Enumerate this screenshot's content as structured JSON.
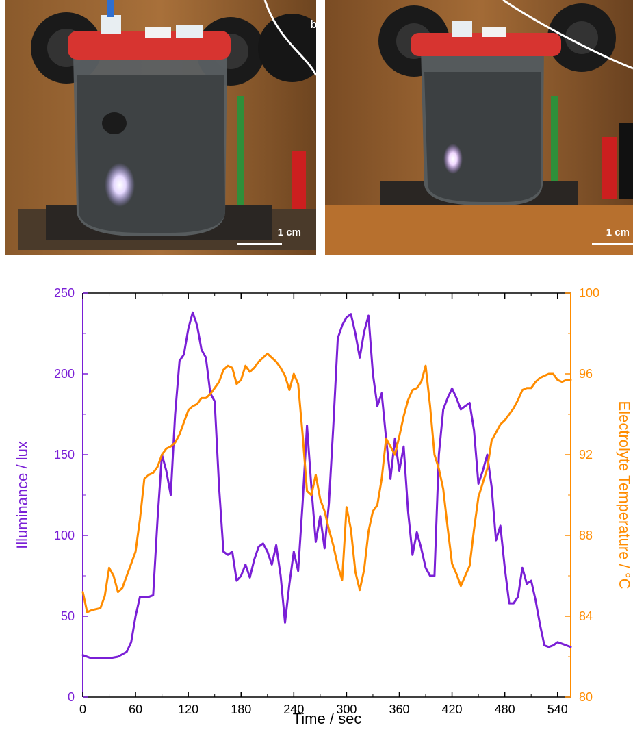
{
  "photos": {
    "panel_letter": "b",
    "left": {
      "scale_label": "1 cm"
    },
    "right": {
      "scale_label": "1 cm"
    }
  },
  "colors": {
    "illuminance": "#7a1fd6",
    "temperature": "#ff8c00",
    "axis": "#000000"
  },
  "chart_data": {
    "type": "line",
    "title": "",
    "xlabel": "Time / sec",
    "ylabel_left": "Illuminance / lux",
    "ylabel_right": "Electrolyte Temperature / °C",
    "xlim": [
      0,
      555
    ],
    "ylim_left": [
      0,
      250
    ],
    "ylim_right": [
      80,
      100
    ],
    "x_ticks": [
      0,
      60,
      120,
      180,
      240,
      300,
      360,
      420,
      480,
      540
    ],
    "y_ticks_left": [
      0,
      50,
      100,
      150,
      200,
      250
    ],
    "y_ticks_right": [
      80,
      84,
      88,
      92,
      96,
      100
    ],
    "grid": false,
    "series": [
      {
        "name": "Illuminance",
        "axis": "left",
        "color": "#7a1fd6",
        "x": [
          0,
          10,
          20,
          30,
          40,
          50,
          55,
          60,
          65,
          70,
          75,
          80,
          85,
          90,
          95,
          100,
          105,
          110,
          115,
          120,
          125,
          130,
          135,
          140,
          145,
          150,
          155,
          160,
          165,
          170,
          175,
          180,
          185,
          190,
          195,
          200,
          205,
          210,
          215,
          220,
          225,
          230,
          235,
          240,
          245,
          250,
          255,
          260,
          265,
          270,
          275,
          280,
          285,
          290,
          295,
          300,
          305,
          310,
          315,
          320,
          325,
          330,
          335,
          340,
          345,
          350,
          355,
          360,
          365,
          370,
          375,
          380,
          385,
          390,
          395,
          400,
          405,
          410,
          415,
          420,
          425,
          430,
          435,
          440,
          445,
          450,
          455,
          460,
          465,
          470,
          475,
          480,
          485,
          490,
          495,
          500,
          505,
          510,
          515,
          520,
          525,
          530,
          535,
          540,
          545,
          550,
          555
        ],
        "values": [
          26,
          24,
          24,
          24,
          25,
          28,
          34,
          50,
          62,
          62,
          62,
          63,
          110,
          150,
          140,
          125,
          175,
          208,
          212,
          228,
          238,
          230,
          215,
          210,
          188,
          183,
          130,
          90,
          88,
          90,
          72,
          75,
          82,
          74,
          85,
          93,
          95,
          90,
          82,
          94,
          75,
          46,
          70,
          90,
          78,
          120,
          168,
          130,
          96,
          112,
          92,
          120,
          168,
          222,
          230,
          235,
          237,
          225,
          210,
          226,
          236,
          200,
          180,
          188,
          160,
          135,
          160,
          140,
          155,
          115,
          88,
          102,
          92,
          80,
          75,
          75,
          150,
          178,
          185,
          191,
          185,
          178,
          180,
          182,
          165,
          132,
          140,
          150,
          130,
          97,
          106,
          80,
          58,
          58,
          62,
          80,
          70,
          72,
          60,
          45,
          32,
          31,
          32,
          34,
          33,
          32,
          31
        ]
      },
      {
        "name": "Electrolyte Temperature",
        "axis": "right",
        "color": "#ff8c00",
        "x": [
          0,
          5,
          10,
          20,
          25,
          30,
          35,
          40,
          45,
          50,
          55,
          60,
          65,
          70,
          75,
          80,
          85,
          90,
          95,
          100,
          105,
          110,
          115,
          120,
          125,
          130,
          135,
          140,
          145,
          150,
          155,
          160,
          165,
          170,
          175,
          180,
          185,
          190,
          195,
          200,
          205,
          210,
          215,
          220,
          225,
          230,
          235,
          240,
          245,
          250,
          255,
          260,
          265,
          270,
          275,
          280,
          285,
          290,
          295,
          300,
          305,
          310,
          315,
          320,
          325,
          330,
          335,
          340,
          345,
          350,
          355,
          360,
          365,
          370,
          375,
          380,
          385,
          390,
          395,
          400,
          405,
          410,
          415,
          420,
          425,
          430,
          435,
          440,
          445,
          450,
          455,
          460,
          465,
          470,
          475,
          480,
          485,
          490,
          495,
          500,
          505,
          510,
          515,
          520,
          525,
          530,
          535,
          540,
          545,
          550,
          555
        ],
        "values": [
          85.2,
          84.2,
          84.3,
          84.4,
          85.0,
          86.4,
          86.0,
          85.2,
          85.4,
          86.0,
          86.6,
          87.2,
          88.8,
          90.8,
          91.0,
          91.1,
          91.4,
          92.0,
          92.3,
          92.4,
          92.6,
          93.0,
          93.6,
          94.2,
          94.4,
          94.5,
          94.8,
          94.8,
          95.0,
          95.3,
          95.6,
          96.2,
          96.4,
          96.3,
          95.5,
          95.7,
          96.4,
          96.1,
          96.3,
          96.6,
          96.8,
          97.0,
          96.8,
          96.6,
          96.3,
          95.9,
          95.2,
          96.0,
          95.5,
          93.0,
          90.2,
          90.0,
          91.0,
          89.8,
          89.2,
          88.3,
          87.5,
          86.5,
          85.8,
          89.4,
          88.3,
          86.2,
          85.3,
          86.3,
          88.2,
          89.2,
          89.5,
          90.8,
          92.8,
          92.4,
          92.0,
          92.9,
          93.9,
          94.7,
          95.2,
          95.3,
          95.6,
          96.4,
          94.4,
          92.0,
          91.3,
          90.3,
          88.4,
          86.6,
          86.1,
          85.5,
          86.0,
          86.5,
          88.3,
          89.9,
          90.6,
          91.3,
          92.7,
          93.1,
          93.5,
          93.7,
          94.0,
          94.3,
          94.7,
          95.2,
          95.3,
          95.3,
          95.6,
          95.8,
          95.9,
          96.0,
          96.0,
          95.7,
          95.6,
          95.7,
          95.7
        ]
      }
    ]
  }
}
